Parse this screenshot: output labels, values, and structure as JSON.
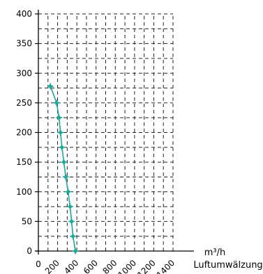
{
  "chart_data": {
    "type": "line",
    "title": "",
    "xlabel": "Luftumwälzung",
    "xunit": "m³/h",
    "ylabel": "",
    "xlim": [
      0,
      1400
    ],
    "ylim": [
      0,
      400
    ],
    "x_ticks": [
      "0",
      "200",
      "400",
      "600",
      "800",
      "1000",
      "1200",
      "1400"
    ],
    "y_ticks": [
      "0",
      "50",
      "100",
      "150",
      "200",
      "250",
      "300",
      "350",
      "400"
    ],
    "grid": true,
    "grid_style": "dashed",
    "line_color": "#1aa89a",
    "series": [
      {
        "points": [
          {
            "x": 125,
            "y": 278
          },
          {
            "x": 190,
            "y": 250
          },
          {
            "x": 215,
            "y": 225
          },
          {
            "x": 230,
            "y": 200
          },
          {
            "x": 245,
            "y": 175
          },
          {
            "x": 265,
            "y": 150
          },
          {
            "x": 285,
            "y": 125
          },
          {
            "x": 310,
            "y": 100
          },
          {
            "x": 330,
            "y": 75
          },
          {
            "x": 345,
            "y": 50
          },
          {
            "x": 360,
            "y": 25
          },
          {
            "x": 385,
            "y": 0
          }
        ]
      }
    ]
  }
}
